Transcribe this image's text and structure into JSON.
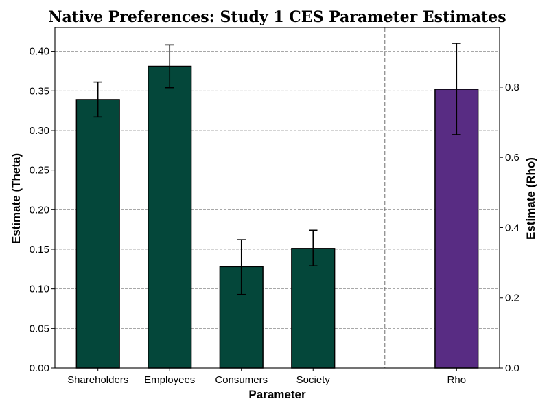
{
  "chart_data": {
    "type": "bar",
    "title": "Native Preferences: Study 1 CES Parameter Estimates",
    "xlabel": "Parameter",
    "ylabel_left": "Estimate (Theta)",
    "ylabel_right": "Estimate (Rho)",
    "grid": true,
    "left_axis": {
      "ylim": [
        0,
        0.43
      ],
      "ticks": [
        "0.00",
        "0.05",
        "0.10",
        "0.15",
        "0.20",
        "0.25",
        "0.30",
        "0.35",
        "0.40"
      ]
    },
    "right_axis": {
      "ylim": [
        0,
        0.97
      ],
      "ticks": [
        "0.0",
        "0.2",
        "0.4",
        "0.6",
        "0.8"
      ]
    },
    "categories": [
      "Shareholders",
      "Employees",
      "Consumers",
      "Society",
      "Rho"
    ],
    "theta_bars": [
      {
        "category": "Shareholders",
        "value": 0.339,
        "err_low": 0.317,
        "err_high": 0.361
      },
      {
        "category": "Employees",
        "value": 0.381,
        "err_low": 0.354,
        "err_high": 0.408
      },
      {
        "category": "Consumers",
        "value": 0.128,
        "err_low": 0.093,
        "err_high": 0.162
      },
      {
        "category": "Society",
        "value": 0.151,
        "err_low": 0.129,
        "err_high": 0.174
      }
    ],
    "rho_bar": {
      "category": "Rho",
      "value": 0.794,
      "err_low": 0.665,
      "err_high": 0.925
    },
    "colors": {
      "theta": "#04473a",
      "rho": "#582c83"
    }
  }
}
